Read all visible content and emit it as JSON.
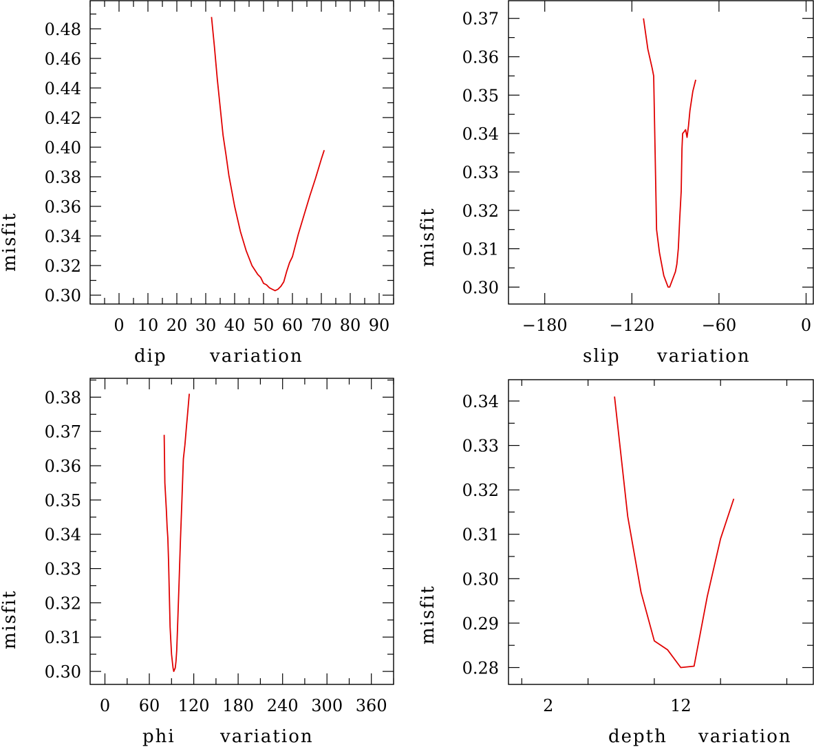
{
  "chart_data": [
    {
      "type": "line",
      "xlabel": "dip",
      "xlabel2": "variation",
      "ylabel": "misfit",
      "xlim": [
        -10,
        95
      ],
      "ylim": [
        0.294,
        0.499
      ],
      "x_ticks": [
        0,
        10,
        20,
        30,
        40,
        50,
        60,
        70,
        80,
        90
      ],
      "x_tick_labels": [
        "0",
        "10",
        "20",
        "30",
        "40",
        "50",
        "60",
        "70",
        "80",
        "90"
      ],
      "x_minor_step": 5,
      "y_ticks": [
        0.3,
        0.32,
        0.34,
        0.36,
        0.38,
        0.4,
        0.42,
        0.44,
        0.46,
        0.48
      ],
      "y_tick_labels": [
        "0.30",
        "0.32",
        "0.34",
        "0.36",
        "0.38",
        "0.40",
        "0.42",
        "0.44",
        "0.46",
        "0.48"
      ],
      "y_minor_step": 0.01,
      "series": [
        {
          "color": "#e00000",
          "x": [
            32,
            33,
            34,
            35,
            36,
            37,
            38,
            40,
            42,
            44,
            45,
            46,
            48,
            49,
            50,
            51,
            52,
            53,
            54,
            55,
            56,
            57,
            58,
            59,
            60,
            62,
            64,
            66,
            68,
            70,
            71
          ],
          "y": [
            0.488,
            0.468,
            0.446,
            0.427,
            0.408,
            0.395,
            0.381,
            0.36,
            0.343,
            0.33,
            0.325,
            0.32,
            0.314,
            0.312,
            0.308,
            0.307,
            0.305,
            0.304,
            0.303,
            0.304,
            0.306,
            0.309,
            0.316,
            0.322,
            0.326,
            0.341,
            0.354,
            0.367,
            0.379,
            0.392,
            0.398
          ]
        }
      ]
    },
    {
      "type": "line",
      "xlabel": "slip",
      "xlabel2": "variation",
      "ylabel": "misfit",
      "xlim": [
        -205,
        5
      ],
      "ylim": [
        0.2956,
        0.3746
      ],
      "x_ticks": [
        -180,
        -120,
        -60,
        0
      ],
      "x_tick_labels": [
        "−180",
        "−120",
        "−60",
        "0"
      ],
      "x_minor_step": 60,
      "y_ticks": [
        0.3,
        0.31,
        0.32,
        0.33,
        0.34,
        0.35,
        0.36,
        0.37
      ],
      "y_tick_labels": [
        "0.30",
        "0.31",
        "0.32",
        "0.33",
        "0.34",
        "0.35",
        "0.36",
        "0.37"
      ],
      "y_minor_step": 0.005,
      "series": [
        {
          "color": "#e00000",
          "x": [
            -112,
            -109,
            -106,
            -105,
            -104,
            -103,
            -102,
            -101,
            -100,
            -98,
            -96,
            -95,
            -94,
            -92,
            -90,
            -89,
            -88,
            -87,
            -86,
            -85.5,
            -85,
            -84,
            -83,
            -82,
            -81,
            -80,
            -78,
            -76
          ],
          "y": [
            0.37,
            0.362,
            0.357,
            0.355,
            0.335,
            0.315,
            0.312,
            0.309,
            0.307,
            0.303,
            0.301,
            0.3,
            0.3,
            0.302,
            0.304,
            0.306,
            0.31,
            0.318,
            0.325,
            0.336,
            0.34,
            0.3405,
            0.341,
            0.339,
            0.342,
            0.346,
            0.351,
            0.354
          ]
        }
      ]
    },
    {
      "type": "line",
      "xlabel": "phi",
      "xlabel2": "variation",
      "ylabel": "misfit",
      "xlim": [
        -20,
        390
      ],
      "ylim": [
        0.2962,
        0.3855
      ],
      "x_ticks": [
        0,
        60,
        120,
        180,
        240,
        300,
        360
      ],
      "x_tick_labels": [
        "0",
        "60",
        "120",
        "180",
        "240",
        "300",
        "360"
      ],
      "x_minor_step": 30,
      "y_ticks": [
        0.3,
        0.31,
        0.32,
        0.33,
        0.34,
        0.35,
        0.36,
        0.37,
        0.38
      ],
      "y_tick_labels": [
        "0.30",
        "0.31",
        "0.32",
        "0.33",
        "0.34",
        "0.35",
        "0.36",
        "0.37",
        "0.38"
      ],
      "y_minor_step": 0.005,
      "series": [
        {
          "color": "#e00000",
          "x": [
            80,
            81,
            83,
            84,
            85,
            86,
            88,
            90,
            92,
            93,
            95,
            96,
            97,
            98,
            100,
            102,
            104,
            106,
            108,
            110,
            112,
            114
          ],
          "y": [
            0.369,
            0.355,
            0.347,
            0.342,
            0.339,
            0.332,
            0.313,
            0.305,
            0.301,
            0.3,
            0.301,
            0.303,
            0.306,
            0.312,
            0.325,
            0.338,
            0.35,
            0.362,
            0.366,
            0.371,
            0.376,
            0.381
          ]
        }
      ]
    },
    {
      "type": "line",
      "xlabel": "depth",
      "xlabel2": "variation",
      "ylabel": "misfit",
      "xlim": [
        -1,
        22
      ],
      "ylim": [
        0.2762,
        0.3448
      ],
      "x_ticks": [
        2,
        12
      ],
      "x_tick_labels": [
        "2",
        "12"
      ],
      "x_minor_step": 5,
      "y_ticks": [
        0.28,
        0.29,
        0.3,
        0.31,
        0.32,
        0.33,
        0.34
      ],
      "y_tick_labels": [
        "0.28",
        "0.29",
        "0.30",
        "0.31",
        "0.32",
        "0.33",
        "0.34"
      ],
      "y_minor_step": 0.005,
      "series": [
        {
          "color": "#e00000",
          "x": [
            7,
            8,
            9,
            10,
            11,
            12,
            13,
            14,
            15,
            16
          ],
          "y": [
            0.341,
            0.314,
            0.297,
            0.286,
            0.284,
            0.28,
            0.2803,
            0.296,
            0.309,
            0.318
          ]
        }
      ]
    }
  ]
}
